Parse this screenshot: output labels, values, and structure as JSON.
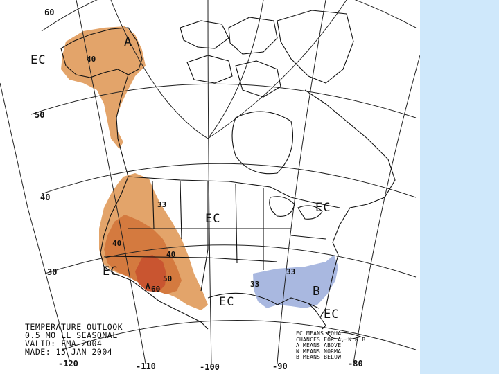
{
  "colors": {
    "above_light": "#e3a46a",
    "above_medium": "#d47a3f",
    "above_dark": "#c95530",
    "below_light": "#a9b8e0",
    "background_panel": "#cfe8fb",
    "land_line": "#111111",
    "grid_line": "#222222"
  },
  "map": {
    "latitude_labels": [
      "60",
      "50",
      "40",
      "30"
    ],
    "longitude_labels": [
      "-120",
      "-110",
      "-100",
      "-90",
      "-80"
    ],
    "ec_labels": [
      "EC",
      "EC",
      "EC",
      "EC",
      "EC",
      "EC"
    ],
    "above_letter": "A",
    "below_letter": "B",
    "contours": {
      "alaska_40": "40",
      "west_33": "33",
      "west_40": "40",
      "southwest_40": "40",
      "texas_50": "50",
      "texas_60": "60",
      "southeast_33a": "33",
      "southeast_33b": "33",
      "southwest_a": "A"
    }
  },
  "info": {
    "line1": "TEMPERATURE OUTLOOK",
    "line2": "0.5 MO LL SEASONAL",
    "line3": "VALID: FMA 2004",
    "line4": "MADE: 15 JAN 2004"
  },
  "legend": {
    "line1": "EC MEANS EQUAL",
    "line2": "CHANCES FOR A, N & B",
    "line3": "A MEANS ABOVE",
    "line4": "N MEANS NORMAL",
    "line5": "B MEANS BELOW"
  }
}
